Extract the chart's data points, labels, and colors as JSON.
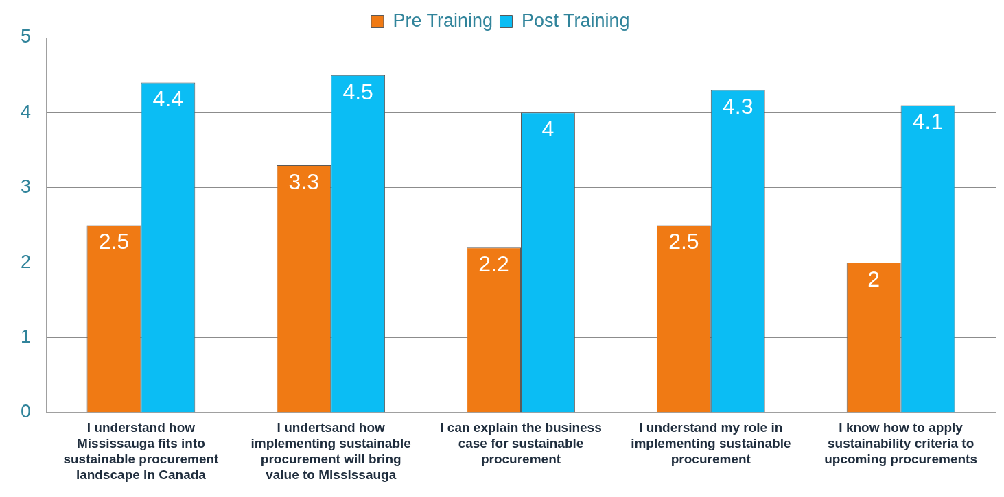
{
  "chart_data": {
    "type": "bar",
    "categories": [
      "I understand how Mississauga fits into sustainable procurement landscape in Canada",
      "I undertsand how implementing sustainable procurement will bring value to Mississauga",
      "I can explain the business case for sustainable procurement",
      "I understand my role in implementing sustainable procurement",
      "I know how to apply sustainability criteria to upcoming procurements"
    ],
    "series": [
      {
        "name": "Pre Training",
        "color": "#f07a14",
        "values": [
          2.5,
          3.3,
          2.2,
          2.5,
          2
        ]
      },
      {
        "name": "Post Training",
        "color": "#0bbdf4",
        "values": [
          4.4,
          4.5,
          4,
          4.3,
          4.1
        ]
      }
    ],
    "ylim": [
      0,
      5
    ],
    "yticks": [
      0,
      1,
      2,
      3,
      4,
      5
    ],
    "grid": "y",
    "legend": "top",
    "data_labels": true
  }
}
